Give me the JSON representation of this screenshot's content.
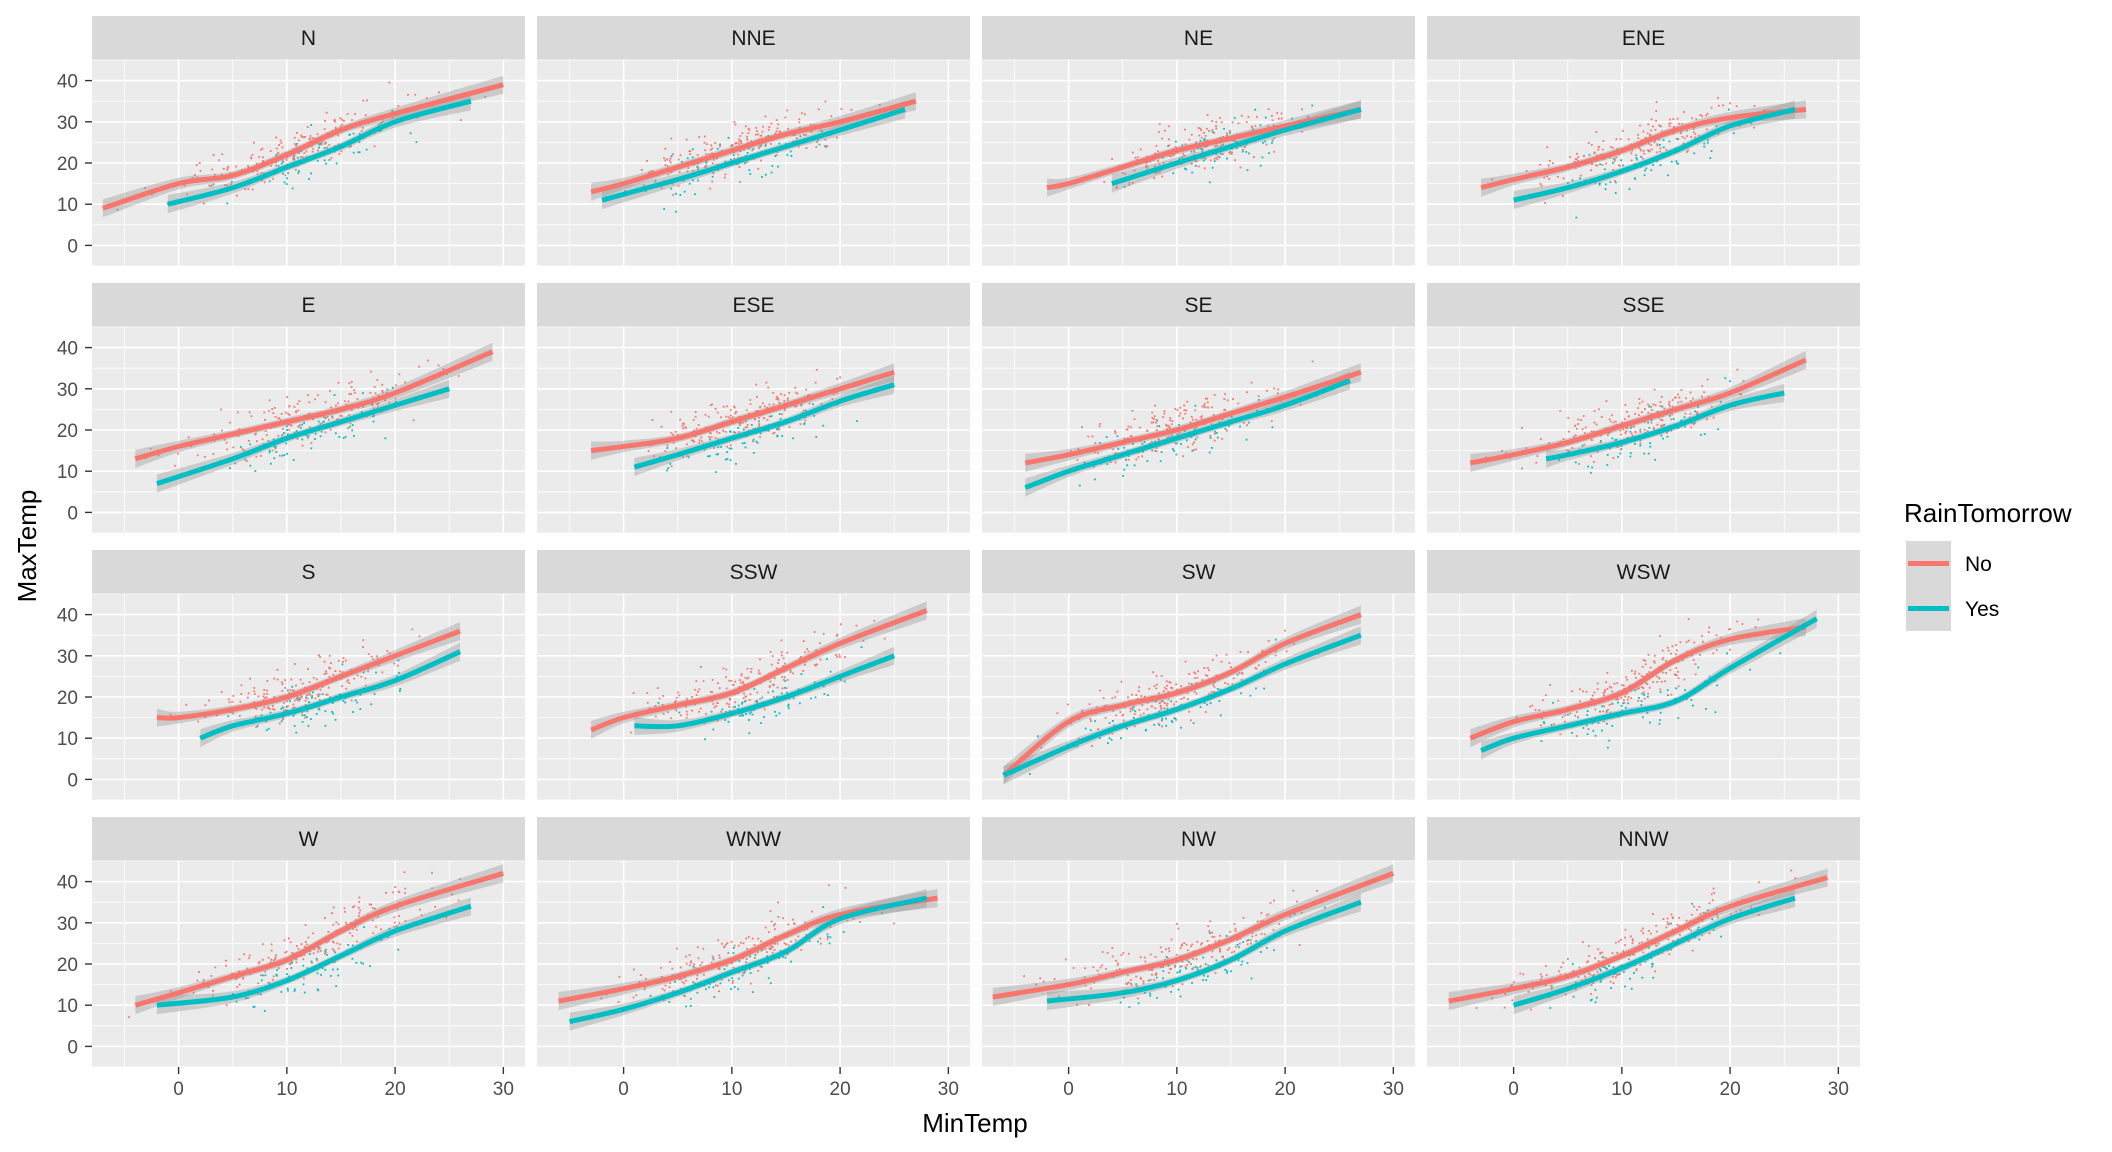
{
  "chart_data": {
    "type": "scatter",
    "facet_by": "wind direction",
    "xlabel": "MinTemp",
    "ylabel": "MaxTemp",
    "xlim": [
      -8,
      32
    ],
    "ylim": [
      -5,
      45
    ],
    "x_ticks": [
      0,
      10,
      20,
      30
    ],
    "y_ticks": [
      0,
      10,
      20,
      30,
      40
    ],
    "grid": true,
    "legend": {
      "title": "RainTomorrow",
      "position": "right",
      "entries": [
        {
          "label": "No",
          "color": "#F8766D"
        },
        {
          "label": "Yes",
          "color": "#00BFC4"
        }
      ]
    },
    "colors": {
      "No": "#F8766D",
      "Yes": "#00BFC4",
      "panel_bg": "#EBEBEB",
      "strip_bg": "#D9D9D9",
      "grid": "#FFFFFF",
      "ribbon": "#999999"
    },
    "panels": [
      {
        "label": "N",
        "no": {
          "x": [
            -7,
            0,
            5,
            10,
            15,
            20,
            30
          ],
          "y": [
            9,
            15,
            17,
            22,
            28,
            32,
            39
          ]
        },
        "yes": {
          "x": [
            -1,
            5,
            10,
            15,
            20,
            27
          ],
          "y": [
            10,
            14,
            19,
            24,
            30,
            35
          ]
        }
      },
      {
        "label": "NNE",
        "no": {
          "x": [
            -3,
            0,
            5,
            10,
            15,
            20,
            27
          ],
          "y": [
            13,
            15,
            19,
            23,
            27,
            30,
            35
          ]
        },
        "yes": {
          "x": [
            -2,
            5,
            10,
            15,
            20,
            26
          ],
          "y": [
            11,
            16,
            20,
            24,
            28,
            33
          ]
        }
      },
      {
        "label": "NE",
        "no": {
          "x": [
            -2,
            0,
            5,
            10,
            15,
            20,
            27
          ],
          "y": [
            14,
            15,
            19,
            23,
            26,
            29,
            33
          ]
        },
        "yes": {
          "x": [
            4,
            10,
            15,
            20,
            27
          ],
          "y": [
            15,
            20,
            24,
            28,
            33
          ]
        }
      },
      {
        "label": "ENE",
        "no": {
          "x": [
            -3,
            0,
            5,
            10,
            15,
            20,
            27
          ],
          "y": [
            14,
            16,
            19,
            23,
            28,
            31,
            33
          ]
        },
        "yes": {
          "x": [
            0,
            5,
            10,
            15,
            20,
            26
          ],
          "y": [
            11,
            14,
            18,
            23,
            29,
            33
          ]
        }
      },
      {
        "label": "E",
        "no": {
          "x": [
            -4,
            0,
            5,
            10,
            15,
            20,
            29
          ],
          "y": [
            13,
            16,
            19,
            22,
            25,
            29,
            39
          ]
        },
        "yes": {
          "x": [
            -2,
            5,
            10,
            15,
            20,
            25
          ],
          "y": [
            7,
            13,
            18,
            22,
            26,
            30
          ]
        }
      },
      {
        "label": "ESE",
        "no": {
          "x": [
            -3,
            0,
            5,
            10,
            15,
            20,
            25
          ],
          "y": [
            15,
            16,
            18,
            22,
            26,
            30,
            34
          ]
        },
        "yes": {
          "x": [
            1,
            5,
            10,
            15,
            20,
            25
          ],
          "y": [
            11,
            14,
            18,
            22,
            27,
            31
          ]
        }
      },
      {
        "label": "SE",
        "no": {
          "x": [
            -4,
            0,
            5,
            10,
            15,
            20,
            27
          ],
          "y": [
            12,
            14,
            17,
            20,
            24,
            28,
            34
          ]
        },
        "yes": {
          "x": [
            -4,
            0,
            5,
            10,
            15,
            20,
            26
          ],
          "y": [
            6,
            10,
            14,
            18,
            22,
            26,
            32
          ]
        }
      },
      {
        "label": "SSE",
        "no": {
          "x": [
            -4,
            0,
            5,
            10,
            15,
            20,
            27
          ],
          "y": [
            12,
            14,
            17,
            21,
            25,
            29,
            37
          ]
        },
        "yes": {
          "x": [
            3,
            5,
            10,
            15,
            20,
            25
          ],
          "y": [
            13,
            14,
            17,
            21,
            26,
            29
          ]
        }
      },
      {
        "label": "S",
        "no": {
          "x": [
            -2,
            0,
            5,
            10,
            15,
            20,
            26
          ],
          "y": [
            15,
            15,
            17,
            20,
            25,
            30,
            36
          ]
        },
        "yes": {
          "x": [
            2,
            5,
            10,
            15,
            20,
            26
          ],
          "y": [
            10,
            13,
            16,
            20,
            24,
            31
          ]
        }
      },
      {
        "label": "SSW",
        "no": {
          "x": [
            -3,
            0,
            5,
            10,
            15,
            20,
            28
          ],
          "y": [
            12,
            15,
            18,
            21,
            27,
            33,
            41
          ]
        },
        "yes": {
          "x": [
            1,
            5,
            10,
            15,
            20,
            25
          ],
          "y": [
            13,
            13,
            16,
            20,
            25,
            30
          ]
        }
      },
      {
        "label": "SW",
        "no": {
          "x": [
            -6,
            0,
            5,
            10,
            15,
            20,
            27
          ],
          "y": [
            1,
            14,
            18,
            21,
            26,
            33,
            40
          ]
        },
        "yes": {
          "x": [
            -6,
            0,
            5,
            10,
            15,
            20,
            27
          ],
          "y": [
            1,
            8,
            13,
            17,
            22,
            28,
            35
          ]
        }
      },
      {
        "label": "WSW",
        "no": {
          "x": [
            -4,
            0,
            5,
            10,
            15,
            20,
            27
          ],
          "y": [
            10,
            14,
            17,
            21,
            29,
            34,
            37
          ]
        },
        "yes": {
          "x": [
            -3,
            0,
            5,
            10,
            15,
            20,
            28
          ],
          "y": [
            7,
            10,
            13,
            16,
            19,
            27,
            39
          ]
        }
      },
      {
        "label": "W",
        "no": {
          "x": [
            -4,
            0,
            5,
            10,
            15,
            20,
            30
          ],
          "y": [
            10,
            13,
            17,
            21,
            28,
            34,
            42
          ]
        },
        "yes": {
          "x": [
            -2,
            5,
            10,
            15,
            20,
            27
          ],
          "y": [
            10,
            12,
            16,
            22,
            28,
            34
          ]
        }
      },
      {
        "label": "WNW",
        "no": {
          "x": [
            -6,
            0,
            5,
            10,
            15,
            20,
            29
          ],
          "y": [
            11,
            14,
            17,
            21,
            27,
            32,
            36
          ]
        },
        "yes": {
          "x": [
            -5,
            0,
            5,
            10,
            15,
            20,
            28
          ],
          "y": [
            6,
            9,
            13,
            18,
            23,
            31,
            36
          ]
        }
      },
      {
        "label": "NW",
        "no": {
          "x": [
            -7,
            0,
            5,
            10,
            15,
            20,
            30
          ],
          "y": [
            12,
            15,
            18,
            21,
            26,
            32,
            42
          ]
        },
        "yes": {
          "x": [
            -2,
            5,
            10,
            15,
            20,
            27
          ],
          "y": [
            11,
            13,
            16,
            21,
            28,
            35
          ]
        }
      },
      {
        "label": "NNW",
        "no": {
          "x": [
            -6,
            0,
            5,
            10,
            15,
            20,
            29
          ],
          "y": [
            11,
            14,
            17,
            22,
            28,
            34,
            41
          ]
        },
        "yes": {
          "x": [
            0,
            5,
            10,
            15,
            20,
            26
          ],
          "y": [
            10,
            14,
            19,
            25,
            31,
            36
          ]
        }
      }
    ]
  }
}
